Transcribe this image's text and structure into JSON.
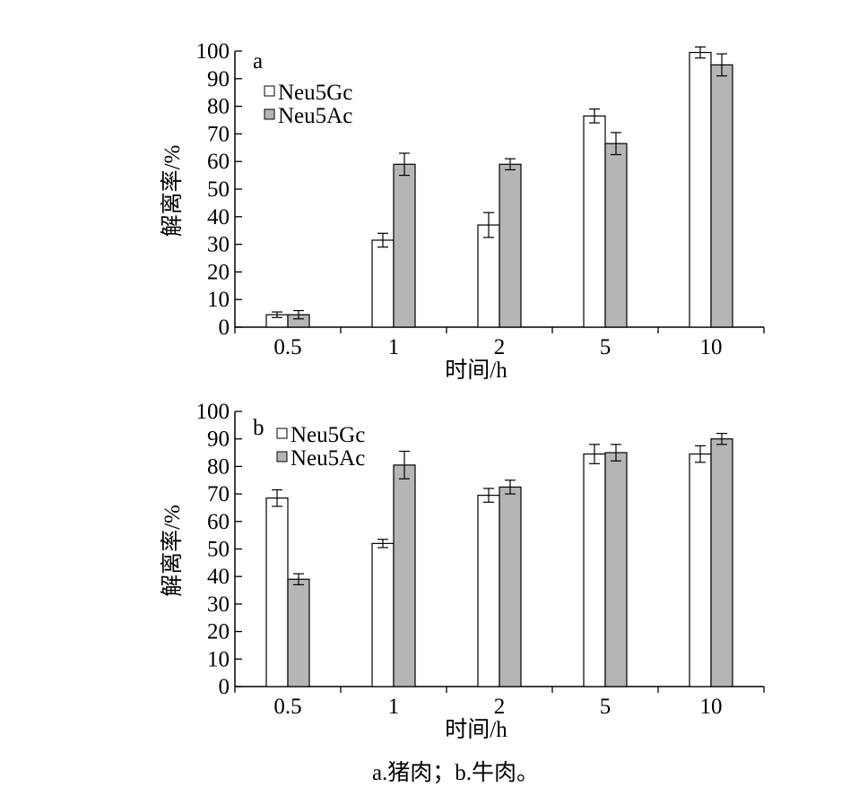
{
  "chart_data": [
    {
      "type": "bar",
      "panel_label": "a",
      "categories": [
        "0.5",
        "1",
        "2",
        "5",
        "10"
      ],
      "xlabel": "时间/h",
      "ylabel": "解离率/%",
      "ylim": [
        0,
        100
      ],
      "yticks": [
        0,
        10,
        20,
        30,
        40,
        50,
        60,
        70,
        80,
        90,
        100
      ],
      "legend_position": "top-left",
      "series": [
        {
          "name": "Neu5Gc",
          "fill": "#ffffff",
          "values": [
            4.5,
            31.5,
            37,
            76.5,
            99.5
          ],
          "errors": [
            1,
            2.5,
            4.5,
            2.5,
            2
          ]
        },
        {
          "name": "Neu5Ac",
          "fill": "#b5b5b5",
          "values": [
            4.5,
            59,
            59,
            66.5,
            95
          ],
          "errors": [
            1.5,
            4,
            2,
            4,
            4
          ]
        }
      ]
    },
    {
      "type": "bar",
      "panel_label": "b",
      "categories": [
        "0.5",
        "1",
        "2",
        "5",
        "10"
      ],
      "xlabel": "时间/h",
      "ylabel": "解离率/%",
      "ylim": [
        0,
        100
      ],
      "yticks": [
        0,
        10,
        20,
        30,
        40,
        50,
        60,
        70,
        80,
        90,
        100
      ],
      "legend_position": "top-left",
      "series": [
        {
          "name": "Neu5Gc",
          "fill": "#ffffff",
          "values": [
            68.5,
            52,
            69.5,
            84.5,
            84.5
          ],
          "errors": [
            3,
            1.5,
            2.5,
            3.5,
            3
          ]
        },
        {
          "name": "Neu5Ac",
          "fill": "#b5b5b5",
          "values": [
            39,
            80.5,
            72.5,
            85,
            90
          ],
          "errors": [
            2,
            5,
            2.5,
            3,
            2
          ]
        }
      ]
    }
  ],
  "caption": "a.猪肉；b.牛肉。"
}
